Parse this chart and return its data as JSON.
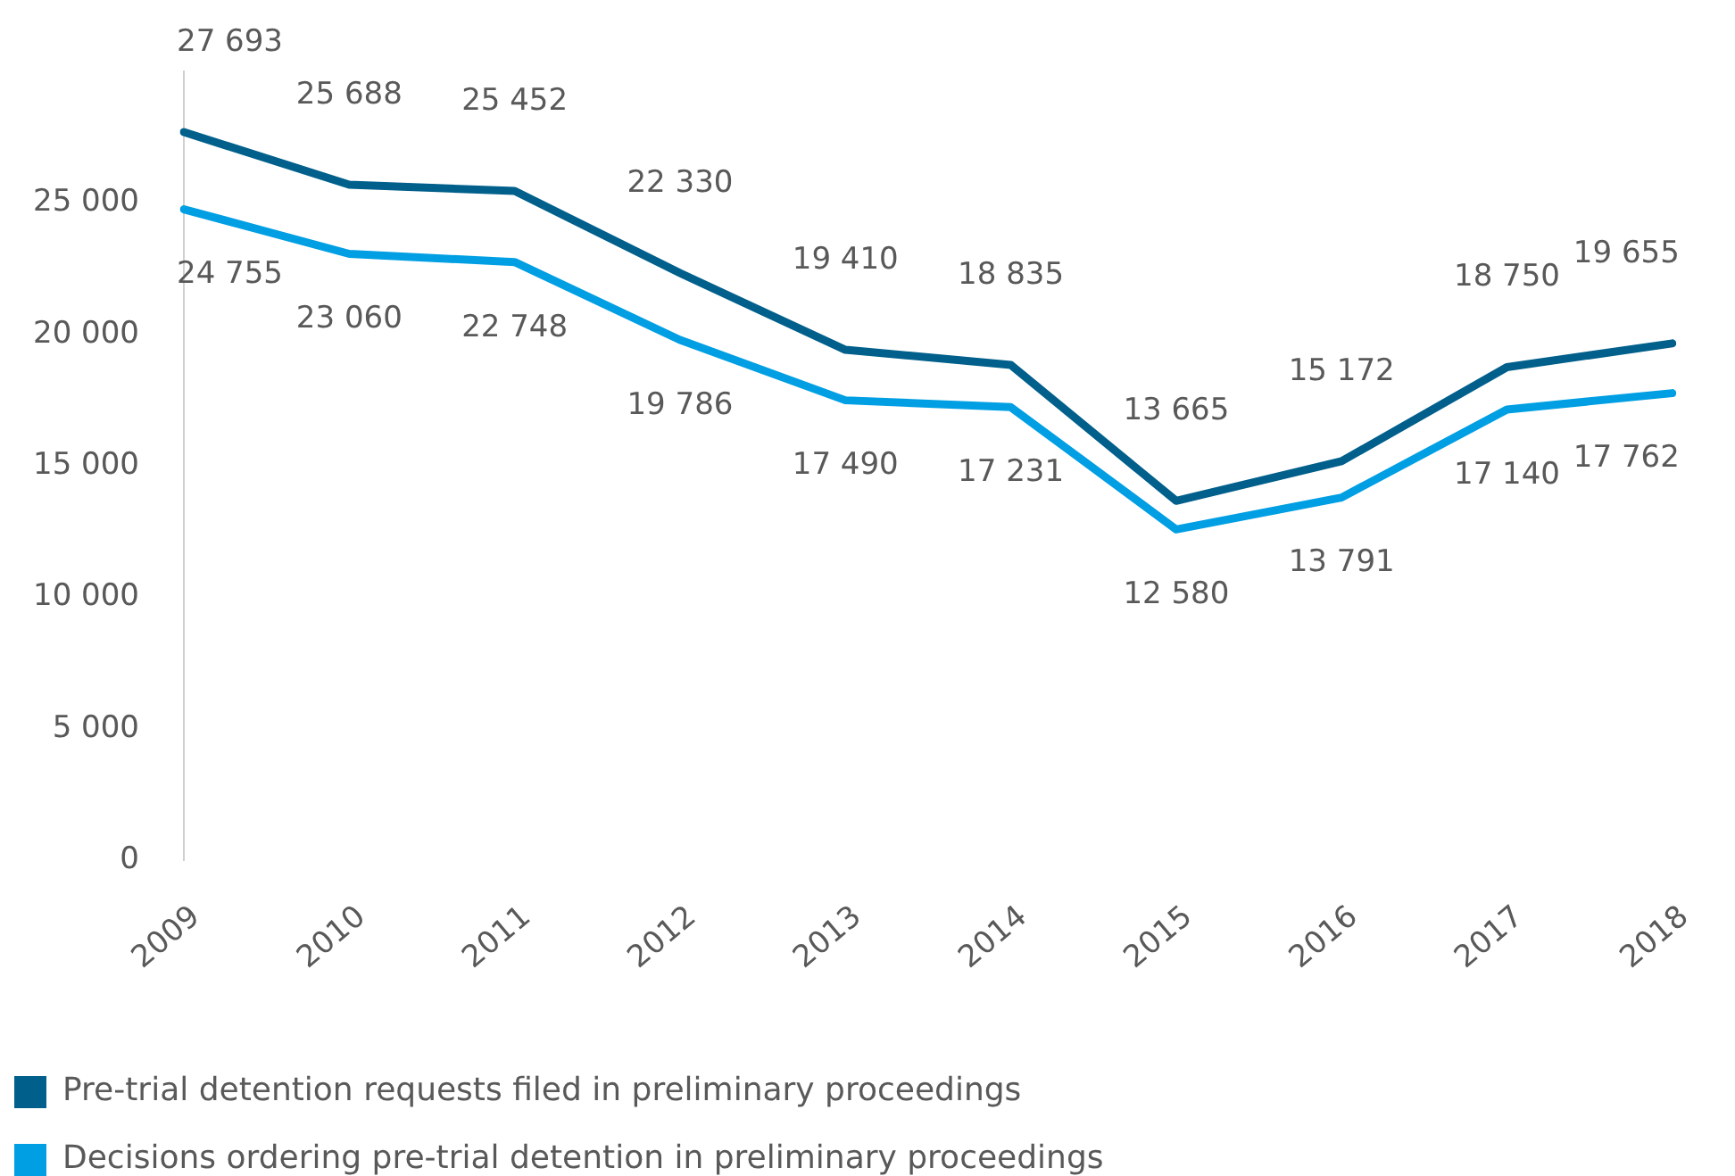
{
  "chart_data": {
    "type": "line",
    "categories": [
      "2009",
      "2010",
      "2011",
      "2012",
      "2013",
      "2014",
      "2015",
      "2016",
      "2017",
      "2018"
    ],
    "series": [
      {
        "name": "Pre-trial detention requests filed in preliminary proceedings",
        "color": "#005f8b",
        "values": [
          27693,
          25688,
          25452,
          22330,
          19410,
          18835,
          13665,
          15172,
          18750,
          19655
        ],
        "value_labels": [
          "27 693",
          "25 688",
          "25 452",
          "22 330",
          "19 410",
          "18 835",
          "13 665",
          "15 172",
          "18 750",
          "19 655"
        ]
      },
      {
        "name": "Decisions ordering pre-trial detention in preliminary proceedings",
        "color": "#009fe3",
        "values": [
          24755,
          23060,
          22748,
          19786,
          17490,
          17231,
          12580,
          13791,
          17140,
          17762
        ],
        "value_labels": [
          "24 755",
          "23 060",
          "22 748",
          "19 786",
          "17 490",
          "17 231",
          "12 580",
          "13 791",
          "17 140",
          "17 762"
        ]
      }
    ],
    "ylim": [
      0,
      30000
    ],
    "yticks": [
      {
        "value": 0,
        "label": "0"
      },
      {
        "value": 5000,
        "label": "5 000"
      },
      {
        "value": 10000,
        "label": "10 000"
      },
      {
        "value": 15000,
        "label": "15 000"
      },
      {
        "value": 20000,
        "label": "20 000"
      },
      {
        "value": 25000,
        "label": "25 000"
      }
    ],
    "grid": false,
    "legend": "bottom left",
    "marker": "none",
    "line_style": "solid"
  }
}
